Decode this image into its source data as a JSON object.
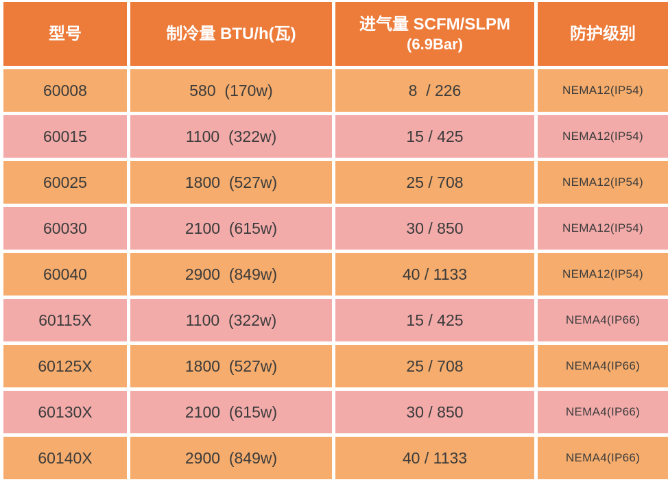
{
  "chart_data": {
    "type": "table",
    "title": "",
    "columns": [
      "型号",
      "制冷量 BTU/h(瓦)",
      "进气量 SCFM/SLPM (6.9Bar)",
      "防护级别"
    ],
    "rows": [
      {
        "model": "60008",
        "cooling_btu_h": 580,
        "cooling_w": 170,
        "airflow_scfm": 8,
        "airflow_slpm": 226,
        "protection": "NEMA12(IP54)"
      },
      {
        "model": "60015",
        "cooling_btu_h": 1100,
        "cooling_w": 322,
        "airflow_scfm": 15,
        "airflow_slpm": 425,
        "protection": "NEMA12(IP54)"
      },
      {
        "model": "60025",
        "cooling_btu_h": 1800,
        "cooling_w": 527,
        "airflow_scfm": 25,
        "airflow_slpm": 708,
        "protection": "NEMA12(IP54)"
      },
      {
        "model": "60030",
        "cooling_btu_h": 2100,
        "cooling_w": 615,
        "airflow_scfm": 30,
        "airflow_slpm": 850,
        "protection": "NEMA12(IP54)"
      },
      {
        "model": "60040",
        "cooling_btu_h": 2900,
        "cooling_w": 849,
        "airflow_scfm": 40,
        "airflow_slpm": 1133,
        "protection": "NEMA12(IP54)"
      },
      {
        "model": "60115X",
        "cooling_btu_h": 1100,
        "cooling_w": 322,
        "airflow_scfm": 15,
        "airflow_slpm": 425,
        "protection": "NEMA4(IP66)"
      },
      {
        "model": "60125X",
        "cooling_btu_h": 1800,
        "cooling_w": 527,
        "airflow_scfm": 25,
        "airflow_slpm": 708,
        "protection": "NEMA4(IP66)"
      },
      {
        "model": "60130X",
        "cooling_btu_h": 2100,
        "cooling_w": 615,
        "airflow_scfm": 30,
        "airflow_slpm": 850,
        "protection": "NEMA4(IP66)"
      },
      {
        "model": "60140X",
        "cooling_btu_h": 2900,
        "cooling_w": 849,
        "airflow_scfm": 40,
        "airflow_slpm": 1133,
        "protection": "NEMA4(IP66)"
      }
    ]
  },
  "header": {
    "col1": "型号",
    "col2": "制冷量 BTU/h(瓦)",
    "col3_line1": "进气量 SCFM/SLPM",
    "col3_line2": "(6.9Bar)",
    "col4": "防护级别"
  },
  "rows": [
    {
      "model": "60008",
      "cooling": "580  (170w)",
      "airflow": "8  / 226",
      "protection": "NEMA12(IP54)"
    },
    {
      "model": "60015",
      "cooling": "1100  (322w)",
      "airflow": "15 / 425",
      "protection": "NEMA12(IP54)"
    },
    {
      "model": "60025",
      "cooling": "1800  (527w)",
      "airflow": "25 / 708",
      "protection": "NEMA12(IP54)"
    },
    {
      "model": "60030",
      "cooling": "2100  (615w)",
      "airflow": "30 / 850",
      "protection": "NEMA12(IP54)"
    },
    {
      "model": "60040",
      "cooling": "2900  (849w)",
      "airflow": "40 / 1133",
      "protection": "NEMA12(IP54)"
    },
    {
      "model": "60115X",
      "cooling": "1100  (322w)",
      "airflow": "15 / 425",
      "protection": "NEMA4(IP66)"
    },
    {
      "model": "60125X",
      "cooling": "1800  (527w)",
      "airflow": "25 / 708",
      "protection": "NEMA4(IP66)"
    },
    {
      "model": "60130X",
      "cooling": "2100  (615w)",
      "airflow": "30 / 850",
      "protection": "NEMA4(IP66)"
    },
    {
      "model": "60140X",
      "cooling": "2900  (849w)",
      "airflow": "40 / 1133",
      "protection": "NEMA4(IP66)"
    }
  ],
  "colors": {
    "header_bg": "#ED7B3A",
    "header_text": "#FFFFFF",
    "row_orange": "#F5AC6C",
    "row_pink": "#F3ABAA",
    "body_text": "#3B3B3B",
    "gap": "#FFFFFF"
  }
}
